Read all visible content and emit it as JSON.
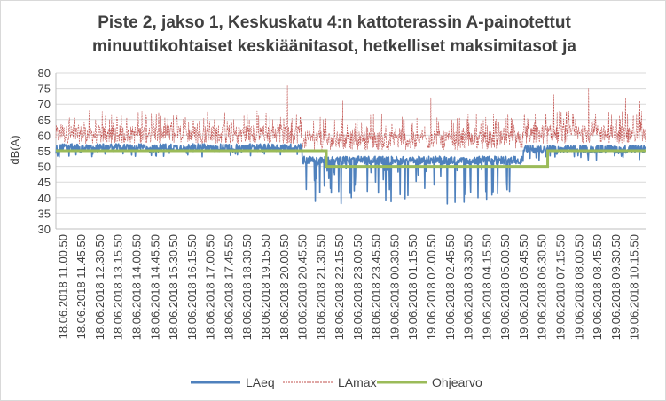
{
  "chart_data": {
    "type": "line",
    "title": "Piste 2, jakso 1, Keskuskatu 4:n kattoterassin A-painotettut minuuttikohtaiset keskiäänitasot, hetkelliset maksimitasot ja",
    "title_lines": [
      "Piste 2, jakso 1, Keskuskatu 4:n kattoterassin A-painotettut",
      "minuuttikohtaiset keskiäänitasot, hetkelliset maksimitasot ja"
    ],
    "ylabel": "dB(A)",
    "xlabel": "",
    "ylim": [
      30,
      80
    ],
    "yticks": [
      30,
      35,
      40,
      45,
      50,
      55,
      60,
      65,
      70,
      75,
      80
    ],
    "grid": true,
    "legend_position": "bottom",
    "x_tick_labels": [
      "18.06.2018  11.00.50",
      "18.06.2018  11.45.50",
      "18.06.2018  12.30.50",
      "18.06.2018  13.15.50",
      "18.06.2018  14.00.50",
      "18.06.2018  14.45.50",
      "18.06.2018  15.30.50",
      "18.06.2018  16.15.50",
      "18.06.2018  17.00.50",
      "18.06.2018  17.45.50",
      "18.06.2018  18.30.50",
      "18.06.2018  19.15.50",
      "18.06.2018  20.00.50",
      "18.06.2018  20.45.50",
      "18.06.2018  21.30.50",
      "18.06.2018  22.15.50",
      "18.06.2018  23.00.50",
      "18.06.2018  23.45.50",
      "19.06.2018  00.30.50",
      "19.06.2018  01.15.50",
      "19.06.2018  02.00.50",
      "19.06.2018  02.45.50",
      "19.06.2018  03.30.50",
      "19.06.2018  04.15.50",
      "19.06.2018  05.00.50",
      "19.06.2018  05.45.50",
      "19.06.2018  06.30.50",
      "19.06.2018  07.15.50",
      "19.06.2018  08.00.50",
      "19.06.2018  08.45.50",
      "19.06.2018  09.30.50",
      "19.06.2018  10.15.50"
    ],
    "time_start": "18.06.2018 11.00.50",
    "time_end": "19.06.2018 10.59.50",
    "series": [
      {
        "name": "LAeq",
        "color": "#4f81bd",
        "style": "solid-thick",
        "segments": [
          {
            "from": "18.06.2018 11.00.50",
            "to": "18.06.2018 21.00.50",
            "typical": 56,
            "min": 53,
            "max": 59
          },
          {
            "from": "18.06.2018 21.00.50",
            "to": "19.06.2018 06.00.50",
            "typical": 52,
            "min": 38,
            "max": 58
          },
          {
            "from": "19.06.2018 06.00.50",
            "to": "19.06.2018 10.59.50",
            "typical": 55.5,
            "min": 52,
            "max": 59
          }
        ],
        "points": [
          {
            "time": "18.06.2018 22.10.50",
            "value": 43
          },
          {
            "time": "18.06.2018 22.30.50",
            "value": 42
          },
          {
            "time": "18.06.2018 23.10.50",
            "value": 44
          },
          {
            "time": "19.06.2018 00.00.50",
            "value": 45
          },
          {
            "time": "19.06.2018 01.00.50",
            "value": 41
          },
          {
            "time": "19.06.2018 02.00.50",
            "value": 43
          },
          {
            "time": "19.06.2018 02.55.50",
            "value": 38
          },
          {
            "time": "19.06.2018 03.40.50",
            "value": 41
          },
          {
            "time": "19.06.2018 04.10.50",
            "value": 40
          },
          {
            "time": "19.06.2018 05.20.50",
            "value": 45
          }
        ]
      },
      {
        "name": "LAmax",
        "color": "#c0504d",
        "style": "dashed-thin",
        "segments": [
          {
            "from": "18.06.2018 11.00.50",
            "to": "18.06.2018 21.00.50",
            "typical": 60,
            "min": 55,
            "max": 68
          },
          {
            "from": "18.06.2018 21.00.50",
            "to": "19.06.2018 06.00.50",
            "typical": 58,
            "min": 48,
            "max": 67
          },
          {
            "from": "19.06.2018 06.00.50",
            "to": "19.06.2018 10.59.50",
            "typical": 60,
            "min": 55,
            "max": 68
          }
        ],
        "points": [
          {
            "time": "18.06.2018 20.25.50",
            "value": 76
          },
          {
            "time": "18.06.2018 22.40.50",
            "value": 71
          },
          {
            "time": "19.06.2018 02.15.50",
            "value": 72
          },
          {
            "time": "19.06.2018 07.15.50",
            "value": 73
          },
          {
            "time": "19.06.2018 08.40.50",
            "value": 75
          },
          {
            "time": "19.06.2018 10.10.50",
            "value": 72
          },
          {
            "time": "19.06.2018 10.45.50",
            "value": 71
          }
        ]
      },
      {
        "name": "Ohjearvo",
        "color": "#9bbb59",
        "style": "solid-thick",
        "steps": [
          {
            "from": "18.06.2018 11.00.50",
            "to": "18.06.2018 22.00.50",
            "value": 55
          },
          {
            "from": "18.06.2018 22.00.50",
            "to": "19.06.2018 07.00.50",
            "value": 50
          },
          {
            "from": "19.06.2018 07.00.50",
            "to": "19.06.2018 10.59.50",
            "value": 55
          }
        ]
      }
    ]
  }
}
